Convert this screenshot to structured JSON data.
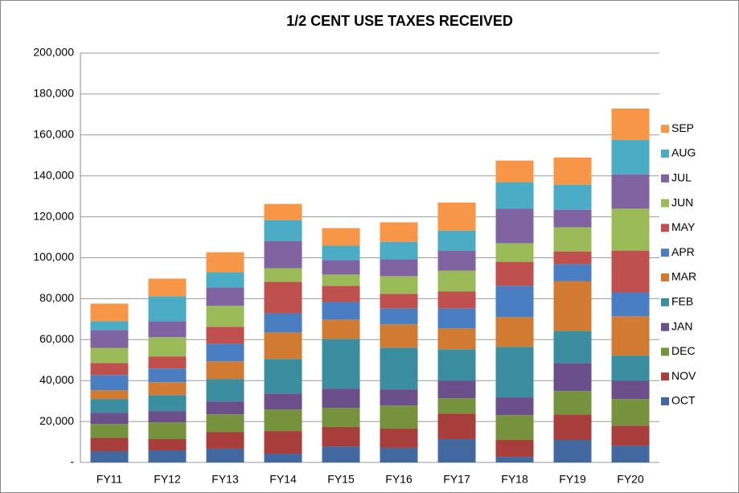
{
  "chart_data": {
    "type": "stacked_bar",
    "title": "1/2 CENT USE TAXES RECEIVED",
    "categories": [
      "FY11",
      "FY12",
      "FY13",
      "FY14",
      "FY15",
      "FY16",
      "FY17",
      "FY18",
      "FY19",
      "FY20"
    ],
    "series": [
      {
        "name": "OCT",
        "color": "#41689f",
        "values": [
          5500,
          5900,
          6700,
          4300,
          7800,
          7100,
          11400,
          2700,
          11000,
          8200
        ]
      },
      {
        "name": "NOV",
        "color": "#a83e3c",
        "values": [
          6500,
          5500,
          8200,
          11000,
          9500,
          9400,
          12500,
          8300,
          12500,
          9800
        ]
      },
      {
        "name": "DEC",
        "color": "#77923d",
        "values": [
          6800,
          8200,
          8600,
          10600,
          9400,
          11300,
          7500,
          12100,
          11400,
          13000
        ]
      },
      {
        "name": "JAN",
        "color": "#6a4f8a",
        "values": [
          5500,
          5500,
          6300,
          7800,
          9400,
          7900,
          8600,
          8700,
          13700,
          9000
        ]
      },
      {
        "name": "FEB",
        "color": "#3a8ea0",
        "values": [
          6700,
          7800,
          11000,
          16900,
          24300,
          20400,
          15300,
          24700,
          15700,
          12200
        ]
      },
      {
        "name": "MAR",
        "color": "#d07a32",
        "values": [
          4300,
          6300,
          8600,
          12900,
          9400,
          11400,
          10200,
          14500,
          24300,
          19200
        ]
      },
      {
        "name": "APR",
        "color": "#4a7ec2",
        "values": [
          7400,
          6700,
          8600,
          9400,
          8600,
          7800,
          9800,
          15300,
          8300,
          11700
        ]
      },
      {
        "name": "MAY",
        "color": "#c0504d",
        "values": [
          5900,
          5900,
          8300,
          15300,
          7900,
          7100,
          8200,
          11700,
          6200,
          20400
        ]
      },
      {
        "name": "JUN",
        "color": "#9bbb59",
        "values": [
          7400,
          9400,
          10200,
          6700,
          5500,
          8600,
          10200,
          9100,
          11800,
          20500
        ]
      },
      {
        "name": "JUL",
        "color": "#8064a2",
        "values": [
          8700,
          7800,
          9000,
          13300,
          7000,
          8200,
          9800,
          16900,
          8600,
          16800
        ]
      },
      {
        "name": "AUG",
        "color": "#4bacc6",
        "values": [
          4300,
          12200,
          7400,
          10200,
          7100,
          8600,
          9800,
          12900,
          12200,
          16800
        ]
      },
      {
        "name": "SEP",
        "color": "#f79646",
        "values": [
          8600,
          8600,
          9800,
          7900,
          8600,
          9500,
          13700,
          10600,
          13300,
          15300
        ]
      }
    ],
    "ylim": [
      0,
      200000
    ],
    "yticks": [
      {
        "value": 0,
        "label": "-"
      },
      {
        "value": 20000,
        "label": "20,000"
      },
      {
        "value": 40000,
        "label": "40,000"
      },
      {
        "value": 60000,
        "label": "60,000"
      },
      {
        "value": 80000,
        "label": "80,000"
      },
      {
        "value": 100000,
        "label": "100,000"
      },
      {
        "value": 120000,
        "label": "120,000"
      },
      {
        "value": 140000,
        "label": "140,000"
      },
      {
        "value": 160000,
        "label": "160,000"
      },
      {
        "value": 180000,
        "label": "180,000"
      },
      {
        "value": 200000,
        "label": "200,000"
      }
    ],
    "grid": true,
    "legend": "right"
  }
}
